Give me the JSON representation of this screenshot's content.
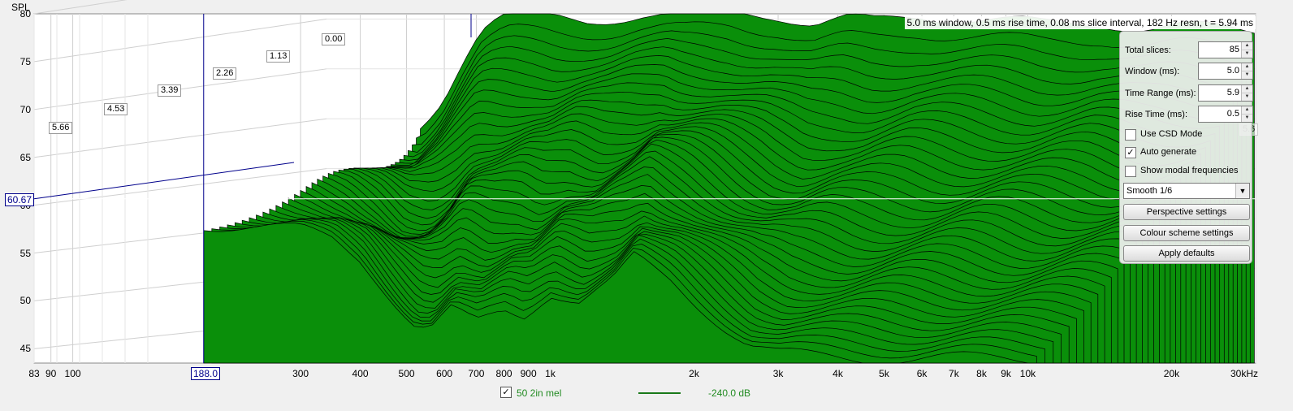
{
  "chart_data": {
    "type": "area",
    "title": "",
    "ylabel": "SPL",
    "xlabel": "",
    "info": "5.0 ms window, 0.5 ms rise time, 0.08 ms slice interval, 182 Hz resn, t = 5.94 ms",
    "y_ticks": [
      "80",
      "75",
      "70",
      "65",
      "60",
      "55",
      "50",
      "45"
    ],
    "y_tick_values": [
      80,
      75,
      70,
      65,
      60,
      55,
      50,
      45
    ],
    "ylim": [
      43.5,
      80
    ],
    "x_scale": "log",
    "xlim": [
      83,
      30000
    ],
    "x_ticks": [
      {
        "value": 83,
        "label": "83"
      },
      {
        "value": 90,
        "label": "90"
      },
      {
        "value": 100,
        "label": "100"
      },
      {
        "value": 300,
        "label": "300"
      },
      {
        "value": 400,
        "label": "400"
      },
      {
        "value": 500,
        "label": "500"
      },
      {
        "value": 600,
        "label": "600"
      },
      {
        "value": 700,
        "label": "700"
      },
      {
        "value": 800,
        "label": "800"
      },
      {
        "value": 900,
        "label": "900"
      },
      {
        "value": 1000,
        "label": "1k"
      },
      {
        "value": 2000,
        "label": "2k"
      },
      {
        "value": 3000,
        "label": "3k"
      },
      {
        "value": 4000,
        "label": "4k"
      },
      {
        "value": 5000,
        "label": "5k"
      },
      {
        "value": 6000,
        "label": "6k"
      },
      {
        "value": 7000,
        "label": "7k"
      },
      {
        "value": 8000,
        "label": "8k"
      },
      {
        "value": 9000,
        "label": "9k"
      },
      {
        "value": 10000,
        "label": "10k"
      },
      {
        "value": 20000,
        "label": "20k"
      },
      {
        "value": 30000,
        "label": "30kHz"
      }
    ],
    "time_axis_labels": [
      "0.00",
      "1.13",
      "2.26",
      "3.39",
      "4.53",
      "5.66"
    ],
    "time_axis_right_label": "5.6",
    "cursor": {
      "freq_label": "188.0",
      "spl_label": "60.67",
      "freq": 188,
      "spl": 60.67
    },
    "front_slice": {
      "freq": [
        188,
        230,
        300,
        350,
        400,
        440,
        490,
        520,
        560,
        620,
        700,
        800,
        880,
        1000,
        1150,
        1350,
        1500,
        1800,
        2000,
        2300,
        2600,
        3000,
        3500,
        4000,
        5000,
        6000,
        7000,
        8000,
        9000,
        10000
      ],
      "spl": [
        58,
        57.8,
        57.4,
        56.5,
        54.5,
        52,
        49,
        47.5,
        47,
        49,
        47.6,
        49,
        48.5,
        51,
        50,
        52,
        54.5,
        52,
        50,
        47.5,
        45.5,
        44.5,
        44.2,
        44.1,
        44,
        44,
        44,
        44,
        44,
        44
      ]
    },
    "back_slice": {
      "freq": [
        450,
        500,
        550,
        600,
        650,
        700,
        800,
        1000,
        1300,
        1600,
        2000,
        2500,
        3000,
        3500,
        4000,
        5000,
        7000,
        9000,
        12000,
        15000,
        18000,
        22000,
        25000
      ],
      "spl": [
        66,
        69,
        73,
        76,
        77,
        77.5,
        77.3,
        77,
        77.5,
        77.3,
        78,
        77.6,
        76.5,
        77,
        76.8,
        77.5,
        77,
        76.5,
        76.8,
        76,
        76.2,
        76.1,
        76
      ]
    }
  },
  "panel": {
    "total_slices": {
      "label": "Total slices:",
      "value": "85"
    },
    "window": {
      "label": "Window (ms):",
      "value": "5.0"
    },
    "time_range": {
      "label": "Time Range (ms):",
      "value": "5.9"
    },
    "rise_time": {
      "label": "Rise Time (ms):",
      "value": "0.5"
    },
    "use_csd": {
      "label": "Use CSD Mode",
      "checked": false
    },
    "auto_generate": {
      "label": "Auto generate",
      "checked": true
    },
    "show_modal": {
      "label": "Show modal frequencies",
      "checked": false
    },
    "smoothing": "Smooth 1/6",
    "perspective_button": "Perspective settings",
    "colour_button": "Colour scheme settings",
    "defaults_button": "Apply defaults"
  },
  "legend": {
    "name": "50 2in mel",
    "checked": true,
    "value": "-240.0 dB",
    "color": "#1a7a1a"
  },
  "colors": {
    "fill": "#0a8f0a",
    "outline": "#000000",
    "cursor": "#00008b",
    "grid": "#cfcfcf"
  }
}
